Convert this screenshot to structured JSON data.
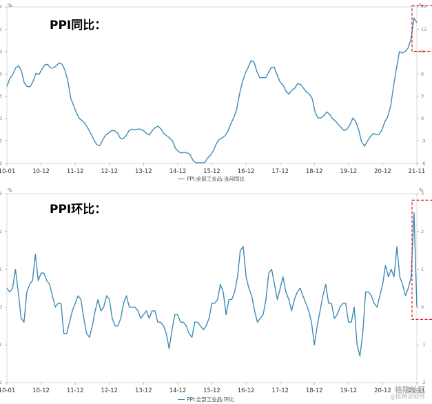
{
  "watermark": {
    "line1": "格隆社区",
    "line2": "@陈杨说财经"
  },
  "chart_data": [
    {
      "type": "line",
      "title": "PPI同比：",
      "unit_label": "%",
      "legend": "PPI:全部工业品:当月同比",
      "x_tick_labels": [
        "10-01",
        "10-12",
        "11-12",
        "12-12",
        "13-12",
        "14-12",
        "15-12",
        "16-12",
        "17-12",
        "18-12",
        "19-12",
        "20-12",
        "21-11"
      ],
      "y_ticks": [
        -6,
        -3,
        0,
        3,
        6,
        9,
        12,
        15
      ],
      "ylim": [
        -6,
        15
      ],
      "highlight": "last-point",
      "series": [
        {
          "values": [
            4.3,
            5.4,
            5.9,
            6.8,
            7.1,
            6.4,
            4.8,
            4.3,
            4.3,
            5.0,
            6.1,
            5.9,
            6.6,
            7.2,
            7.3,
            6.8,
            6.8,
            7.1,
            7.5,
            7.3,
            6.5,
            5.0,
            2.7,
            1.7,
            0.7,
            0.0,
            -0.3,
            -0.7,
            -1.4,
            -2.1,
            -2.9,
            -3.5,
            -3.6,
            -2.8,
            -2.2,
            -1.9,
            -1.6,
            -1.6,
            -1.9,
            -2.6,
            -2.7,
            -2.3,
            -1.6,
            -1.4,
            -1.5,
            -1.4,
            -1.4,
            -1.6,
            -2.0,
            -2.2,
            -1.6,
            -1.2,
            -1.0,
            -1.4,
            -2.0,
            -2.3,
            -2.6,
            -3.0,
            -4.0,
            -4.4,
            -4.6,
            -4.5,
            -4.6,
            -4.8,
            -5.6,
            -5.9,
            -5.9,
            -5.9,
            -5.9,
            -5.3,
            -4.9,
            -4.3,
            -3.4,
            -2.8,
            -2.6,
            -2.3,
            -1.7,
            -0.7,
            0.1,
            1.2,
            3.3,
            4.9,
            6.1,
            6.9,
            7.8,
            7.6,
            6.3,
            5.5,
            5.5,
            5.5,
            6.2,
            6.9,
            6.9,
            5.8,
            4.9,
            4.5,
            3.7,
            3.3,
            3.8,
            4.1,
            4.7,
            4.6,
            4.1,
            3.6,
            3.3,
            2.7,
            0.9,
            0.1,
            0.1,
            0.4,
            0.9,
            0.6,
            0.0,
            -0.3,
            -0.8,
            -1.2,
            -1.6,
            -1.4,
            -0.8,
            0.1,
            -0.4,
            -1.5,
            -3.1,
            -3.7,
            -3.0,
            -2.4,
            -2.0,
            -2.1,
            -2.1,
            -1.5,
            -0.4,
            0.3,
            1.7,
            4.4,
            6.8,
            9.0,
            8.8,
            9.0,
            9.5,
            10.7,
            13.5,
            12.9
          ]
        }
      ]
    },
    {
      "type": "line",
      "title": "PPI环比：",
      "unit_label": "%",
      "legend": "PPI:全部工业品:环比",
      "x_tick_labels": [
        "10-01",
        "10-12",
        "11-12",
        "12-12",
        "13-12",
        "14-12",
        "15-12",
        "16-12",
        "17-12",
        "18-12",
        "19-12",
        "20-12",
        "21-11"
      ],
      "y_ticks": [
        -2,
        -1,
        0,
        1,
        2,
        3
      ],
      "ylim": [
        -2,
        3
      ],
      "highlight": "last-point",
      "series": [
        {
          "values": [
            0.5,
            0.4,
            0.5,
            1.0,
            0.4,
            -0.3,
            -0.4,
            0.4,
            0.6,
            0.7,
            1.4,
            0.7,
            0.9,
            0.9,
            0.7,
            0.6,
            0.3,
            0.0,
            0.1,
            0.1,
            -0.7,
            -0.7,
            -0.4,
            -0.1,
            0.1,
            0.3,
            0.2,
            -0.3,
            -0.7,
            -0.8,
            -0.5,
            -0.1,
            0.2,
            -0.1,
            0.0,
            0.3,
            0.2,
            -0.3,
            -0.5,
            -0.5,
            -0.3,
            0.1,
            0.3,
            0.0,
            0.0,
            0.0,
            -0.1,
            -0.3,
            -0.2,
            -0.1,
            -0.3,
            -0.1,
            -0.1,
            -0.4,
            -0.4,
            -0.5,
            -0.7,
            -1.1,
            -0.6,
            -0.2,
            -0.2,
            -0.4,
            -0.4,
            -0.5,
            -0.7,
            -0.8,
            -0.4,
            -0.4,
            -0.5,
            -0.6,
            -0.5,
            -0.3,
            0.1,
            0.1,
            0.2,
            0.6,
            0.4,
            -0.2,
            0.2,
            0.2,
            0.4,
            0.8,
            1.5,
            1.6,
            0.8,
            0.5,
            0.3,
            -0.1,
            -0.4,
            -0.3,
            -0.2,
            0.2,
            0.9,
            1.0,
            0.6,
            0.2,
            0.5,
            0.8,
            0.4,
            0.2,
            -0.1,
            0.2,
            0.4,
            0.5,
            0.3,
            0.1,
            -0.1,
            -0.4,
            -1.0,
            -0.5,
            -0.1,
            0.3,
            0.6,
            0.1,
            0.1,
            -0.3,
            -0.2,
            0.0,
            0.1,
            0.1,
            -0.4,
            -0.4,
            0.0,
            -1.0,
            -1.3,
            -0.7,
            0.4,
            0.4,
            0.3,
            0.1,
            0.0,
            0.3,
            0.6,
            1.1,
            0.8,
            1.0,
            0.8,
            1.6,
            0.8,
            0.6,
            0.3,
            0.5,
            0.8,
            2.5,
            0.0
          ]
        }
      ]
    }
  ]
}
